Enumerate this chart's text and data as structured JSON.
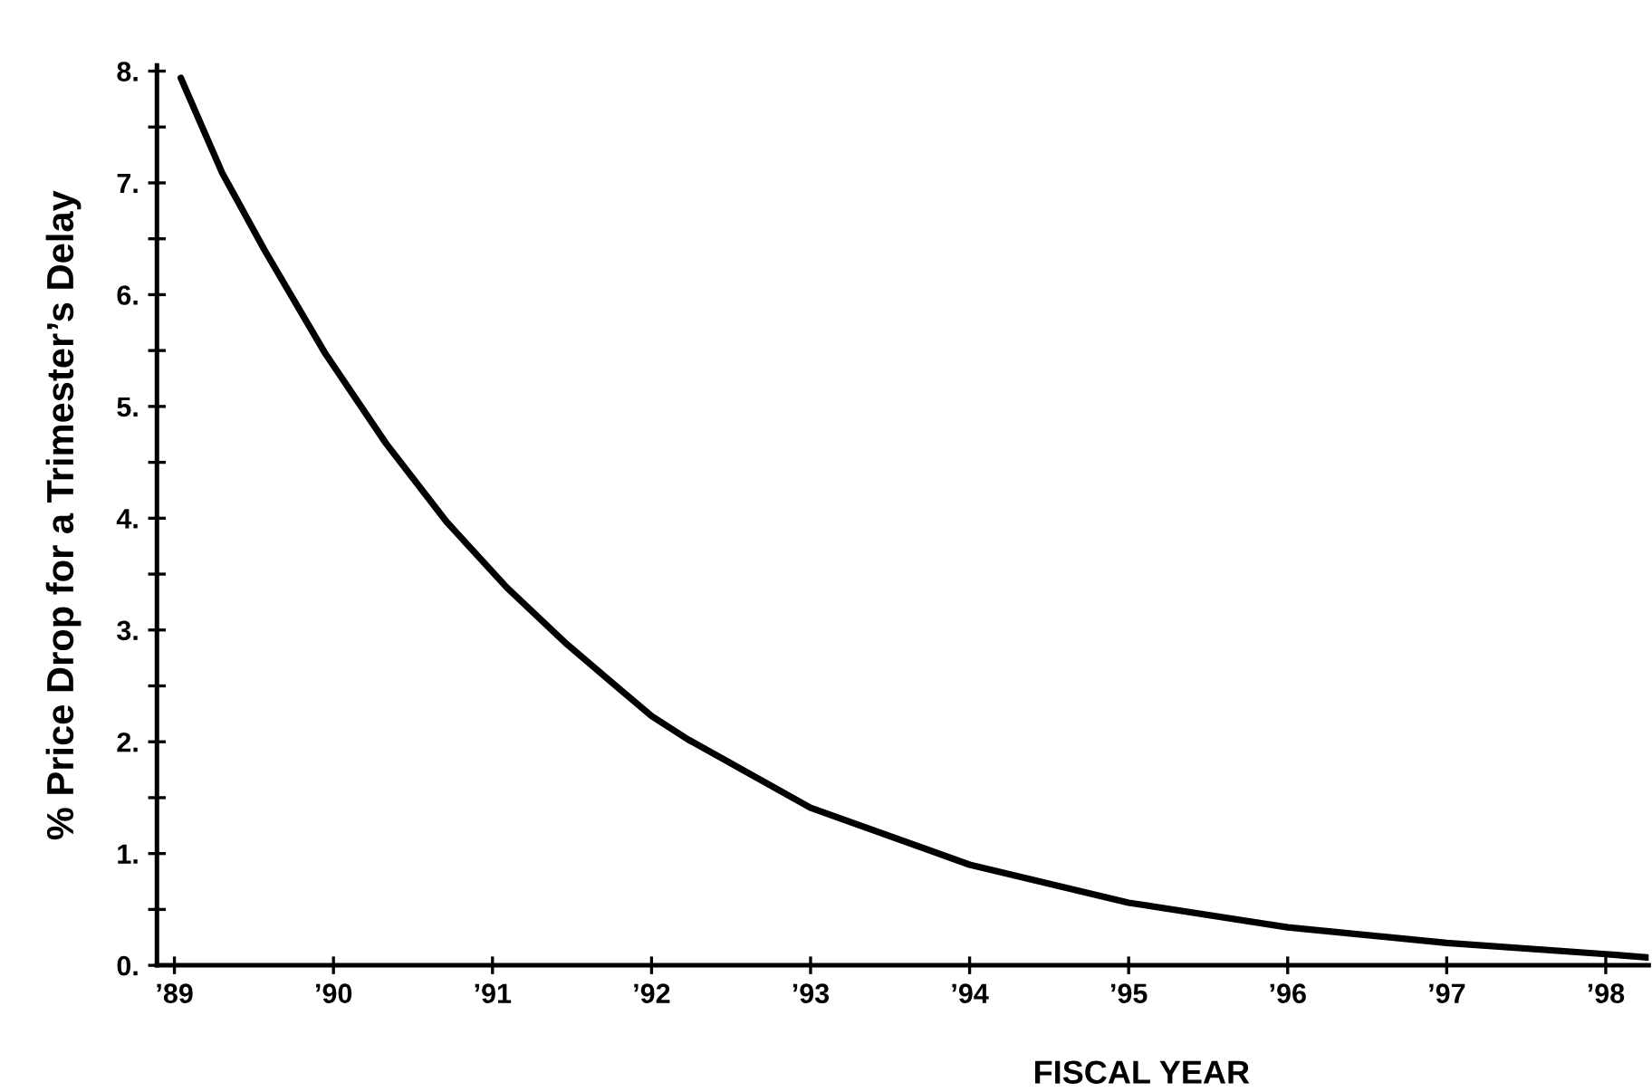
{
  "chart_data": {
    "type": "line",
    "xlabel": "FISCAL YEAR",
    "ylabel": "% Price Drop for a Trimester’s Delay",
    "series": [
      {
        "color": "#000000",
        "x": [
          1989.04,
          1989.3,
          1989.57,
          1989.95,
          1990.33,
          1990.71,
          1991.09,
          1991.47,
          1991.85,
          1992.0,
          1992.23,
          1993.0,
          1994.0,
          1995.0,
          1996.0,
          1997.0,
          1998.0,
          1998.26
        ],
        "values": [
          7.94,
          7.09,
          6.39,
          5.47,
          4.67,
          3.97,
          3.38,
          2.87,
          2.41,
          2.23,
          2.02,
          1.41,
          0.9,
          0.56,
          0.34,
          0.2,
          0.1,
          0.07
        ]
      }
    ],
    "xlim": [
      1988.89,
      1998.27
    ],
    "ylim": [
      0,
      8.05
    ],
    "xticks": [
      {
        "value": 1989,
        "label": "’89"
      },
      {
        "value": 1990,
        "label": "’90"
      },
      {
        "value": 1991,
        "label": "’91"
      },
      {
        "value": 1992,
        "label": "’92"
      },
      {
        "value": 1993,
        "label": "’93"
      },
      {
        "value": 1994,
        "label": "’94"
      },
      {
        "value": 1995,
        "label": "’95"
      },
      {
        "value": 1996,
        "label": "’96"
      },
      {
        "value": 1997,
        "label": "’97"
      },
      {
        "value": 1998,
        "label": "’98"
      }
    ],
    "yticks": [
      {
        "value": 0,
        "label": "0."
      },
      {
        "value": 0.5,
        "label": null
      },
      {
        "value": 1,
        "label": "1."
      },
      {
        "value": 1.5,
        "label": null
      },
      {
        "value": 2,
        "label": "2."
      },
      {
        "value": 2.5,
        "label": null
      },
      {
        "value": 3,
        "label": "3."
      },
      {
        "value": 3.5,
        "label": null
      },
      {
        "value": 4,
        "label": "4."
      },
      {
        "value": 4.5,
        "label": null
      },
      {
        "value": 5,
        "label": "5."
      },
      {
        "value": 5.5,
        "label": null
      },
      {
        "value": 6,
        "label": "6."
      },
      {
        "value": 6.5,
        "label": null
      },
      {
        "value": 7,
        "label": "7."
      },
      {
        "value": 7.5,
        "label": null
      },
      {
        "value": 8,
        "label": "8."
      }
    ],
    "grid": false,
    "legend": false,
    "marker": "none",
    "line_style": "solid"
  }
}
